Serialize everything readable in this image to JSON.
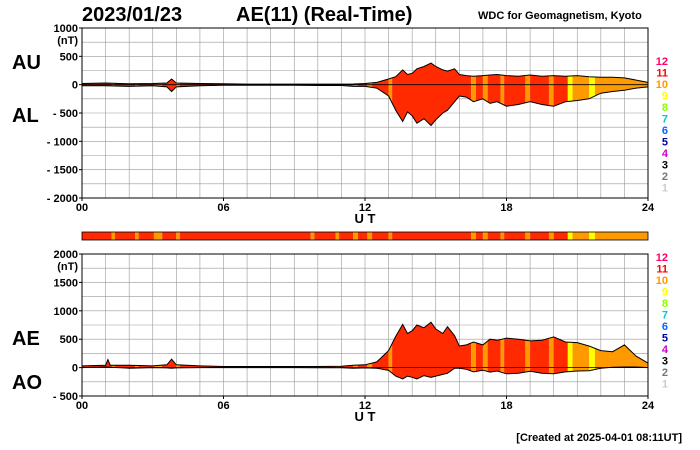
{
  "header": {
    "date": "2023/01/23",
    "title": "AE(11) (Real-Time)",
    "source": "WDC for Geomagnetism, Kyoto"
  },
  "footer": {
    "created": "[Created at 2025-04-01 08:11UT]"
  },
  "colors": {
    "activity_red": "#ff2a00",
    "activity_orange": "#ff9900",
    "activity_yellow": "#ffff00",
    "grid": "#999999",
    "axis": "#000000"
  },
  "activity_levels": [
    {
      "label": "12",
      "color": "#ff0066"
    },
    {
      "label": "11",
      "color": "#ff0000"
    },
    {
      "label": "10",
      "color": "#ff9900"
    },
    {
      "label": "9",
      "color": "#ffff00"
    },
    {
      "label": "8",
      "color": "#88ff00"
    },
    {
      "label": "7",
      "color": "#00cccc"
    },
    {
      "label": "6",
      "color": "#0066ff"
    },
    {
      "label": "5",
      "color": "#0000aa"
    },
    {
      "label": "4",
      "color": "#cc00cc"
    },
    {
      "label": "3",
      "color": "#000000"
    },
    {
      "label": "2",
      "color": "#777777"
    },
    {
      "label": "1",
      "color": "#cccccc"
    }
  ],
  "activity_bar": [
    {
      "start": 0,
      "end": 1.25,
      "level": 11
    },
    {
      "start": 1.25,
      "end": 1.4,
      "level": 10
    },
    {
      "start": 1.4,
      "end": 2.25,
      "level": 11
    },
    {
      "start": 2.25,
      "end": 2.4,
      "level": 10
    },
    {
      "start": 2.4,
      "end": 3.05,
      "level": 11
    },
    {
      "start": 3.05,
      "end": 3.4,
      "level": 10
    },
    {
      "start": 3.4,
      "end": 4.0,
      "level": 11
    },
    {
      "start": 4.0,
      "end": 4.15,
      "level": 10
    },
    {
      "start": 4.15,
      "end": 9.7,
      "level": 11
    },
    {
      "start": 9.7,
      "end": 9.85,
      "level": 10
    },
    {
      "start": 9.85,
      "end": 10.75,
      "level": 11
    },
    {
      "start": 10.75,
      "end": 10.9,
      "level": 10
    },
    {
      "start": 10.9,
      "end": 11.5,
      "level": 11
    },
    {
      "start": 11.5,
      "end": 11.7,
      "level": 10
    },
    {
      "start": 11.7,
      "end": 12.1,
      "level": 11
    },
    {
      "start": 12.1,
      "end": 12.3,
      "level": 10
    },
    {
      "start": 12.3,
      "end": 13.0,
      "level": 11
    },
    {
      "start": 13.0,
      "end": 13.15,
      "level": 10
    },
    {
      "start": 13.15,
      "end": 16.5,
      "level": 11
    },
    {
      "start": 16.5,
      "end": 16.7,
      "level": 10
    },
    {
      "start": 16.7,
      "end": 17.0,
      "level": 11
    },
    {
      "start": 17.0,
      "end": 17.2,
      "level": 10
    },
    {
      "start": 17.2,
      "end": 17.75,
      "level": 11
    },
    {
      "start": 17.75,
      "end": 17.9,
      "level": 10
    },
    {
      "start": 17.9,
      "end": 18.8,
      "level": 11
    },
    {
      "start": 18.8,
      "end": 19.0,
      "level": 10
    },
    {
      "start": 19.0,
      "end": 19.8,
      "level": 11
    },
    {
      "start": 19.8,
      "end": 20.0,
      "level": 10
    },
    {
      "start": 20.0,
      "end": 20.6,
      "level": 11
    },
    {
      "start": 20.6,
      "end": 20.8,
      "level": 9
    },
    {
      "start": 20.8,
      "end": 21.5,
      "level": 10
    },
    {
      "start": 21.5,
      "end": 21.75,
      "level": 9
    },
    {
      "start": 21.75,
      "end": 24,
      "level": 10
    }
  ],
  "chart_data": [
    {
      "type": "area",
      "panel": "AU/AL",
      "labels": [
        "AU",
        "AL"
      ],
      "unit": "(nT)",
      "xlabel": "U T",
      "xlim": [
        0,
        24
      ],
      "xticks": [
        0,
        6,
        12,
        18,
        24
      ],
      "xtick_labels": [
        "00",
        "06",
        "12",
        "18",
        "24"
      ],
      "ylim": [
        -2000,
        1000
      ],
      "yticks": [
        1000,
        500,
        0,
        -500,
        -1000,
        -1500,
        -2000
      ],
      "ytick_labels": [
        "1000",
        "500",
        "0",
        "- 500",
        "- 1000",
        "- 1500",
        "- 2000"
      ],
      "grid": true,
      "series": [
        {
          "label": "AU",
          "x": [
            0,
            1,
            2,
            3,
            3.6,
            3.8,
            4.0,
            5,
            6,
            7,
            8,
            9,
            10,
            11,
            11.5,
            12,
            12.5,
            13.0,
            13.3,
            13.6,
            13.8,
            14.0,
            14.2,
            14.5,
            14.8,
            15.0,
            15.3,
            15.5,
            15.8,
            16.0,
            16.3,
            16.6,
            17.0,
            17.3,
            17.6,
            18.0,
            18.5,
            19.0,
            19.5,
            20.0,
            20.5,
            21.0,
            21.5,
            22.0,
            22.5,
            23.0,
            23.5,
            24.0
          ],
          "values": [
            20,
            30,
            15,
            20,
            30,
            100,
            30,
            20,
            15,
            10,
            10,
            10,
            10,
            10,
            12,
            20,
            40,
            100,
            140,
            260,
            180,
            200,
            280,
            320,
            380,
            320,
            260,
            240,
            280,
            180,
            160,
            150,
            160,
            170,
            180,
            160,
            150,
            170,
            150,
            160,
            150,
            160,
            140,
            130,
            130,
            120,
            80,
            40
          ]
        },
        {
          "label": "AL",
          "x": [
            0,
            1,
            2,
            3,
            3.6,
            3.8,
            4.0,
            5,
            6,
            7,
            8,
            9,
            10,
            11,
            11.5,
            12,
            12.5,
            13.0,
            13.3,
            13.6,
            13.8,
            14.0,
            14.2,
            14.5,
            14.8,
            15.0,
            15.3,
            15.5,
            15.8,
            16.0,
            16.3,
            16.6,
            17.0,
            17.3,
            17.6,
            18.0,
            18.5,
            19.0,
            19.5,
            20.0,
            20.5,
            21.0,
            21.5,
            22.0,
            22.5,
            23.0,
            23.5,
            24.0
          ],
          "values": [
            -20,
            -20,
            -30,
            -20,
            -40,
            -120,
            -40,
            -20,
            -10,
            -10,
            -10,
            -10,
            -15,
            -15,
            -30,
            -30,
            -60,
            -200,
            -450,
            -650,
            -480,
            -550,
            -680,
            -600,
            -720,
            -620,
            -500,
            -450,
            -300,
            -200,
            -220,
            -300,
            -250,
            -330,
            -300,
            -380,
            -350,
            -300,
            -350,
            -380,
            -300,
            -280,
            -250,
            -150,
            -120,
            -100,
            -60,
            -40
          ]
        }
      ]
    },
    {
      "type": "area",
      "panel": "AE/AO",
      "labels": [
        "AE",
        "AO"
      ],
      "unit": "(nT)",
      "xlabel": "U T",
      "xlim": [
        0,
        24
      ],
      "xticks": [
        0,
        6,
        12,
        18,
        24
      ],
      "xtick_labels": [
        "00",
        "06",
        "12",
        "18",
        "24"
      ],
      "ylim": [
        -500,
        2000
      ],
      "yticks": [
        2000,
        1500,
        1000,
        500,
        0,
        -500
      ],
      "ytick_labels": [
        "2000",
        "1500",
        "1000",
        "500",
        "0",
        "- 500"
      ],
      "grid": true,
      "series": [
        {
          "label": "AE",
          "x": [
            0,
            1,
            1.1,
            1.2,
            2,
            3,
            3.6,
            3.8,
            4.0,
            5,
            6,
            7,
            8,
            9,
            10,
            11,
            11.5,
            12,
            12.5,
            13.0,
            13.3,
            13.6,
            13.8,
            14.0,
            14.2,
            14.5,
            14.8,
            15.0,
            15.3,
            15.5,
            15.8,
            16.0,
            16.3,
            16.6,
            17.0,
            17.3,
            17.6,
            18.0,
            18.5,
            19.0,
            19.5,
            20.0,
            20.5,
            21.0,
            21.5,
            22.0,
            22.5,
            23.0,
            23.5,
            24.0
          ],
          "values": [
            30,
            40,
            140,
            40,
            40,
            30,
            50,
            150,
            50,
            30,
            20,
            20,
            20,
            20,
            20,
            25,
            40,
            50,
            100,
            300,
            550,
            760,
            600,
            650,
            750,
            700,
            800,
            680,
            600,
            720,
            560,
            380,
            400,
            450,
            400,
            500,
            480,
            520,
            500,
            470,
            480,
            540,
            450,
            440,
            380,
            300,
            280,
            400,
            200,
            80
          ]
        },
        {
          "label": "AO",
          "x": [
            0,
            1,
            2,
            3,
            3.6,
            3.8,
            4.0,
            5,
            6,
            7,
            8,
            9,
            10,
            11,
            11.5,
            12,
            12.5,
            13.0,
            13.3,
            13.6,
            13.8,
            14.0,
            14.2,
            14.5,
            14.8,
            15.0,
            15.3,
            15.5,
            15.8,
            16.0,
            16.3,
            16.6,
            17.0,
            17.3,
            17.6,
            18.0,
            18.5,
            19.0,
            19.5,
            20.0,
            20.5,
            21.0,
            21.5,
            22.0,
            22.5,
            23.0,
            23.5,
            24.0
          ],
          "values": [
            0,
            10,
            -10,
            0,
            -5,
            -10,
            -5,
            0,
            0,
            0,
            0,
            0,
            -3,
            -3,
            -10,
            -5,
            -10,
            -50,
            -150,
            -200,
            -150,
            -170,
            -200,
            -140,
            -170,
            -150,
            -120,
            -100,
            -10,
            -10,
            -30,
            -75,
            -45,
            -80,
            -60,
            -110,
            -100,
            -65,
            -100,
            -110,
            -75,
            -60,
            -55,
            -10,
            5,
            10,
            10,
            0
          ]
        }
      ]
    }
  ]
}
